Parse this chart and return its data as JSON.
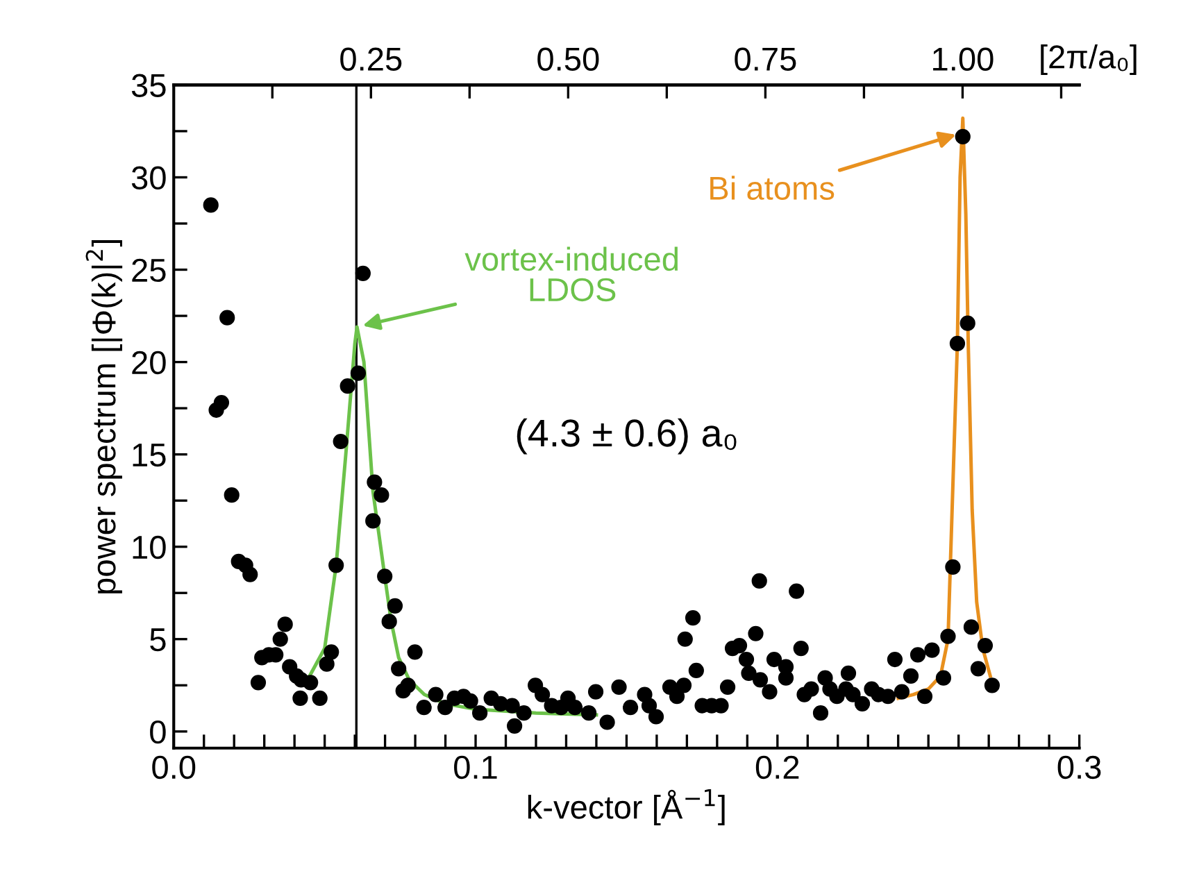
{
  "chart_data": {
    "type": "scatter",
    "xlabel": "k-vector [Å$^{−1}$]",
    "ylabel": "power spectrum [|Φ(k)|$^{2}$]",
    "x2label": "[2π/a₀]",
    "xlim": [
      0,
      0.3
    ],
    "ylim": [
      -0.9,
      35
    ],
    "x2lim": [
      0,
      1.148
    ],
    "xticks": [
      {
        "value": 0,
        "label": "0.0"
      },
      {
        "value": 0.01,
        "label": null
      },
      {
        "value": 0.02,
        "label": null
      },
      {
        "value": 0.03,
        "label": null
      },
      {
        "value": 0.04,
        "label": null
      },
      {
        "value": 0.05,
        "label": null
      },
      {
        "value": 0.06,
        "label": null
      },
      {
        "value": 0.07,
        "label": null
      },
      {
        "value": 0.08,
        "label": null
      },
      {
        "value": 0.09,
        "label": null
      },
      {
        "value": 0.1,
        "label": "0.1"
      },
      {
        "value": 0.11,
        "label": null
      },
      {
        "value": 0.12,
        "label": null
      },
      {
        "value": 0.13,
        "label": null
      },
      {
        "value": 0.14,
        "label": null
      },
      {
        "value": 0.15,
        "label": null
      },
      {
        "value": 0.16,
        "label": null
      },
      {
        "value": 0.17,
        "label": null
      },
      {
        "value": 0.18,
        "label": null
      },
      {
        "value": 0.19,
        "label": null
      },
      {
        "value": 0.2,
        "label": "0.2"
      },
      {
        "value": 0.21,
        "label": null
      },
      {
        "value": 0.22,
        "label": null
      },
      {
        "value": 0.23,
        "label": null
      },
      {
        "value": 0.24,
        "label": null
      },
      {
        "value": 0.25,
        "label": null
      },
      {
        "value": 0.26,
        "label": null
      },
      {
        "value": 0.27,
        "label": null
      },
      {
        "value": 0.28,
        "label": null
      },
      {
        "value": 0.29,
        "label": null
      },
      {
        "value": 0.3,
        "label": "0.3"
      }
    ],
    "yticks": [
      0,
      {
        "value": 2.5,
        "label": null
      },
      5,
      {
        "value": 7.5,
        "label": null
      },
      10,
      {
        "value": 12.5,
        "label": null
      },
      15,
      {
        "value": 17.5,
        "label": null
      },
      20,
      {
        "value": 22.5,
        "label": null
      },
      25,
      {
        "value": 27.5,
        "label": null
      },
      30,
      {
        "value": 32.5,
        "label": null
      },
      35
    ],
    "x2ticks": [
      {
        "value": 0.125,
        "label": null
      },
      {
        "value": 0.25,
        "label": "0.25"
      },
      {
        "value": 0.375,
        "label": null
      },
      {
        "value": 0.5,
        "label": "0.50"
      },
      {
        "value": 0.625,
        "label": null
      },
      {
        "value": 0.75,
        "label": "0.75"
      },
      {
        "value": 0.875,
        "label": null
      },
      {
        "value": 1.0,
        "label": "1.00"
      },
      {
        "value": 1.125,
        "label": null
      }
    ],
    "ref_lines": [
      {
        "axis": "x",
        "value": 0.0605,
        "color": "#000000"
      }
    ],
    "annotations": [
      {
        "text": "vortex-induced\nLDOS",
        "x": 0.0607,
        "y": 21.9
      },
      {
        "text": "Bi atoms",
        "x": 0.261,
        "y": 32.4
      },
      "(4.3 ± 0.6) a₀"
    ],
    "series": [
      {
        "color": "#000000",
        "marker": "circle",
        "x": [
          0.0123,
          0.0177,
          0.0158,
          0.0141,
          0.0627,
          0.0611,
          0.0576,
          0.0553,
          0.0192,
          0.0215,
          0.0238,
          0.0253,
          0.0538,
          0.066,
          0.0665,
          0.0688,
          0.0699,
          0.0733,
          0.0714,
          0.0799,
          0.0745,
          0.076,
          0.0776,
          0.028,
          0.0292,
          0.0315,
          0.0338,
          0.0353,
          0.0369,
          0.0384,
          0.0407,
          0.0422,
          0.0453,
          0.0419,
          0.0484,
          0.0507,
          0.0522,
          0.0829,
          0.0868,
          0.0899,
          0.093,
          0.096,
          0.0983,
          0.1014,
          0.1052,
          0.1083,
          0.1129,
          0.1121,
          0.116,
          0.1198,
          0.1221,
          0.1252,
          0.1283,
          0.1306,
          0.1329,
          0.1375,
          0.1398,
          0.1436,
          0.1475,
          0.1513,
          0.156,
          0.1598,
          0.1575,
          0.1644,
          0.1667,
          0.169,
          0.1694,
          0.172,
          0.1731,
          0.1751,
          0.1782,
          0.1813,
          0.1835,
          0.1851,
          0.1874,
          0.1897,
          0.1905,
          0.1928,
          0.194,
          0.1943,
          0.1974,
          0.1989,
          0.2028,
          0.2028,
          0.2063,
          0.2078,
          0.2089,
          0.2112,
          0.2143,
          0.2158,
          0.2174,
          0.2197,
          0.2235,
          0.2227,
          0.225,
          0.2281,
          0.2312,
          0.2335,
          0.2366,
          0.2389,
          0.2412,
          0.2442,
          0.2465,
          0.2488,
          0.2512,
          0.255,
          0.2565,
          0.2581,
          0.2642,
          0.2665,
          0.2688,
          0.2711,
          0.2614,
          0.263,
          0.2596
        ],
        "values": [
          28.5,
          22.4,
          17.8,
          17.4,
          24.8,
          19.4,
          18.7,
          15.7,
          12.8,
          9.2,
          9.0,
          8.5,
          9.0,
          11.4,
          13.5,
          12.8,
          8.4,
          6.8,
          5.95,
          4.3,
          3.4,
          2.2,
          2.5,
          2.65,
          4.0,
          4.15,
          4.15,
          5.0,
          5.8,
          3.5,
          3.0,
          2.8,
          2.65,
          1.8,
          1.8,
          3.65,
          4.3,
          1.3,
          2.0,
          1.3,
          1.8,
          1.9,
          1.65,
          1.0,
          1.8,
          1.5,
          0.3,
          1.4,
          1.0,
          2.5,
          2.0,
          1.4,
          1.3,
          1.8,
          1.3,
          1.0,
          2.15,
          0.5,
          2.4,
          1.3,
          2.0,
          0.8,
          1.4,
          2.4,
          1.9,
          2.5,
          5.0,
          6.15,
          3.3,
          1.4,
          1.4,
          1.4,
          2.4,
          4.5,
          4.65,
          3.9,
          3.15,
          5.3,
          8.15,
          2.8,
          2.15,
          3.9,
          3.5,
          2.9,
          7.6,
          4.5,
          2.0,
          2.3,
          1.0,
          2.9,
          2.3,
          1.9,
          3.15,
          2.3,
          2.0,
          1.5,
          2.3,
          2.0,
          1.9,
          3.9,
          2.15,
          3.0,
          4.15,
          1.9,
          4.4,
          2.9,
          5.15,
          8.9,
          5.65,
          3.4,
          4.65,
          2.5,
          32.2,
          22.1,
          21.0
        ]
      },
      {
        "type": "line",
        "color": "#6cc24a",
        "marker": "none",
        "line_style": "solid",
        "x": [
          0.042,
          0.045,
          0.05,
          0.0538,
          0.057,
          0.06,
          0.0607,
          0.063,
          0.066,
          0.0699,
          0.072,
          0.0745,
          0.078,
          0.083,
          0.09,
          0.1,
          0.12,
          0.14
        ],
        "values": [
          2.6,
          3.0,
          4.5,
          9.0,
          15.0,
          21.0,
          21.9,
          20.0,
          13.0,
          8.4,
          6.0,
          4.0,
          2.8,
          2.0,
          1.5,
          1.2,
          1.0,
          0.9
        ]
      },
      {
        "type": "line",
        "color": "#e8901e",
        "marker": "none",
        "line_style": "solid",
        "x": [
          0.24,
          0.245,
          0.25,
          0.254,
          0.2565,
          0.2596,
          0.2605,
          0.2614,
          0.2624,
          0.2632,
          0.2645,
          0.266,
          0.268,
          0.2705
        ],
        "values": [
          1.8,
          2.0,
          2.3,
          3.0,
          5.0,
          21.0,
          30.0,
          33.2,
          28.0,
          21.0,
          12.0,
          7.0,
          4.5,
          3.0
        ]
      }
    ]
  }
}
